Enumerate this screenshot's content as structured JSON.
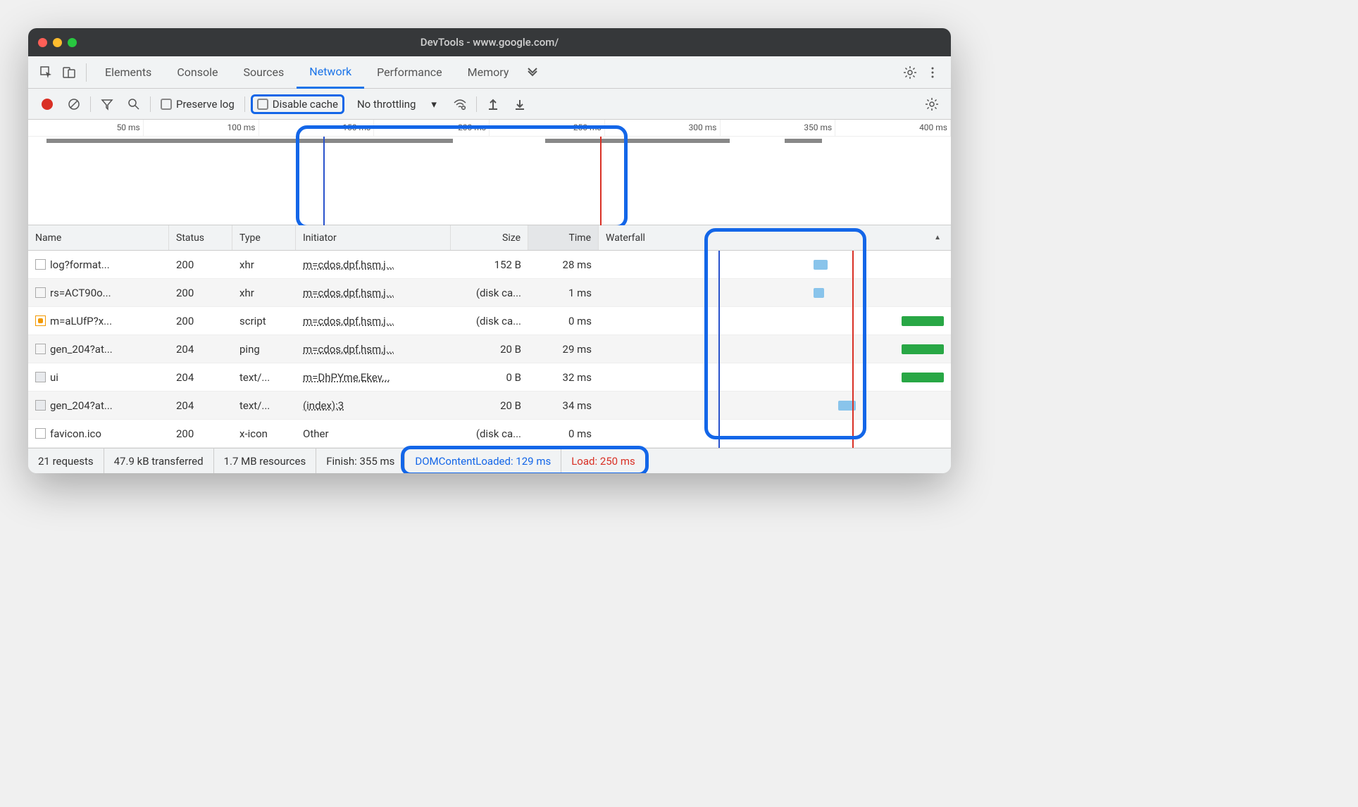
{
  "window": {
    "title": "DevTools - www.google.com/"
  },
  "tabs": [
    "Elements",
    "Console",
    "Sources",
    "Network",
    "Performance",
    "Memory"
  ],
  "active_tab_index": 3,
  "filterbar": {
    "preserve_log": "Preserve log",
    "disable_cache": "Disable cache",
    "throttle": "No throttling"
  },
  "ruler_ticks": [
    "50 ms",
    "100 ms",
    "150 ms",
    "200 ms",
    "250 ms",
    "300 ms",
    "350 ms",
    "400 ms"
  ],
  "overview": {
    "segments": [
      {
        "left_pct": 2,
        "width_pct": 44
      },
      {
        "left_pct": 56,
        "width_pct": 20
      },
      {
        "left_pct": 82,
        "width_pct": 4
      }
    ],
    "dcl_marker_pct": 32,
    "load_marker_pct": 62,
    "highlight_box": {
      "left_pct": 29,
      "width_pct": 36
    }
  },
  "columns": {
    "name": "Name",
    "status": "Status",
    "type": "Type",
    "initiator": "Initiator",
    "size": "Size",
    "time": "Time",
    "waterfall": "Waterfall"
  },
  "rows": [
    {
      "icon": "doc",
      "name": "log?format...",
      "status": "200",
      "type": "xhr",
      "initiator": "m=cdos,dpf,hsm,j...",
      "size": "152 B",
      "time": "28 ms",
      "wf": [
        {
          "l": 61,
          "w": 4,
          "c": "#89c4eb"
        }
      ]
    },
    {
      "icon": "doc",
      "name": "rs=ACT90o...",
      "status": "200",
      "type": "xhr",
      "initiator": "m=cdos,dpf,hsm,j...",
      "size": "(disk ca...",
      "time": "1 ms",
      "wf": [
        {
          "l": 61,
          "w": 3,
          "c": "#89c4eb"
        }
      ]
    },
    {
      "icon": "script",
      "name": "m=aLUfP?x...",
      "status": "200",
      "type": "script",
      "initiator": "m=cdos,dpf,hsm,j...",
      "size": "(disk ca...",
      "time": "0 ms",
      "wf": [
        {
          "l": 86,
          "w": 12,
          "c": "#28a745"
        }
      ]
    },
    {
      "icon": "doc",
      "name": "gen_204?at...",
      "status": "204",
      "type": "ping",
      "initiator": "m=cdos,dpf,hsm,j...",
      "size": "20 B",
      "time": "29 ms",
      "wf": [
        {
          "l": 86,
          "w": 12,
          "c": "#28a745"
        }
      ]
    },
    {
      "icon": "text",
      "name": "ui",
      "status": "204",
      "type": "text/...",
      "initiator": "m=DhPYme,Ekev...",
      "size": "0 B",
      "time": "32 ms",
      "wf": [
        {
          "l": 86,
          "w": 12,
          "c": "#28a745"
        }
      ]
    },
    {
      "icon": "text",
      "name": "gen_204?at...",
      "status": "204",
      "type": "text/...",
      "initiator": "(index):3",
      "size": "20 B",
      "time": "34 ms",
      "wf": [
        {
          "l": 68,
          "w": 5,
          "c": "#89c4eb"
        }
      ]
    },
    {
      "icon": "doc",
      "name": "favicon.ico",
      "status": "200",
      "type": "x-icon",
      "initiator": "Other",
      "size": "(disk ca...",
      "time": "0 ms",
      "wf": []
    }
  ],
  "waterfall_markers": {
    "dcl_pct": 34,
    "load_pct": 72
  },
  "waterfall_highlight": {
    "left_pct": 30,
    "width_pct": 46
  },
  "statusbar": {
    "requests": "21 requests",
    "transferred": "47.9 kB transferred",
    "resources": "1.7 MB resources",
    "finish": "Finish: 355 ms",
    "dcl": "DOMContentLoaded: 129 ms",
    "load": "Load: 250 ms"
  },
  "statusbar_highlight": true,
  "colors": {
    "highlight": "#1366e8",
    "dcl_line": "#2952cc",
    "load_line": "#d93025"
  }
}
